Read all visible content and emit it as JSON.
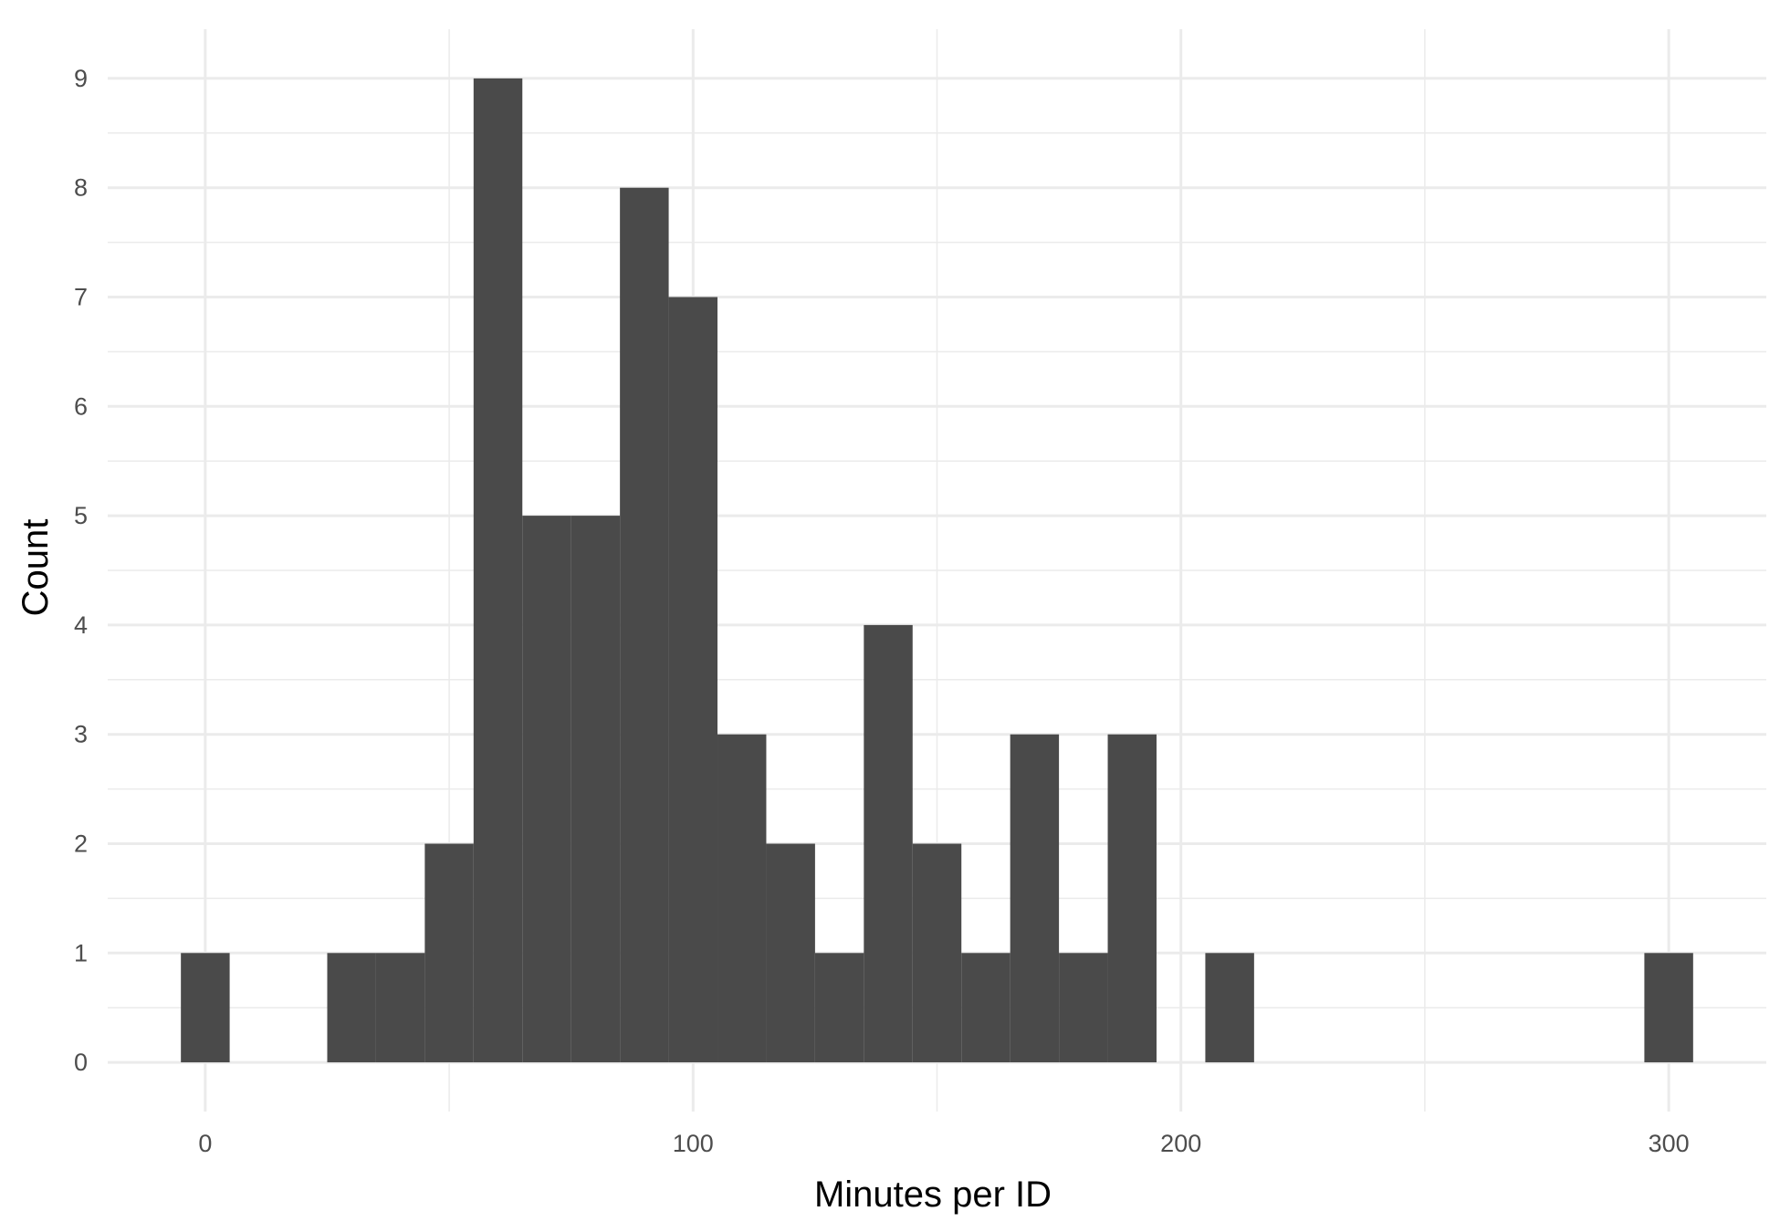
{
  "chart_data": {
    "type": "bar",
    "xlabel": "Minutes per ID",
    "ylabel": "Count",
    "bin_width": 10,
    "bin_centers": [
      0,
      10,
      20,
      30,
      40,
      50,
      60,
      70,
      80,
      90,
      100,
      110,
      120,
      130,
      140,
      150,
      160,
      170,
      180,
      190,
      200,
      210,
      220,
      230,
      240,
      250,
      260,
      270,
      280,
      290,
      300
    ],
    "counts": [
      1,
      0,
      0,
      1,
      1,
      2,
      9,
      5,
      5,
      8,
      7,
      3,
      2,
      1,
      4,
      2,
      1,
      3,
      1,
      3,
      0,
      1,
      0,
      0,
      0,
      0,
      0,
      0,
      0,
      0,
      1
    ],
    "xlim": [
      -20,
      320
    ],
    "ylim": [
      -0.45,
      9.45
    ],
    "x_ticks": [
      0,
      100,
      200,
      300
    ],
    "y_ticks": [
      0,
      1,
      2,
      3,
      4,
      5,
      6,
      7,
      8,
      9
    ],
    "grid": true,
    "bar_color": "#4a4a4a",
    "grid_color": "#ebebeb"
  }
}
